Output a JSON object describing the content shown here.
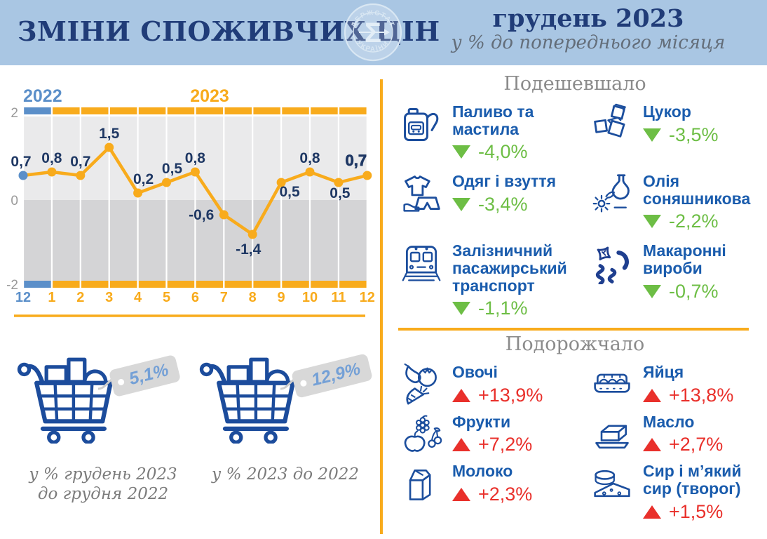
{
  "header": {
    "title": "ЗМІНИ СПОЖИВЧИХ ЦІН",
    "period": "грудень 2023",
    "subtitle": "у % до попереднього місяця",
    "logo_text_top": "ДЕРЖСТАТ",
    "logo_text_bottom": "УКРАЇНИ",
    "logo_symbol": "Σ"
  },
  "colors": {
    "header_bg": "#A9C6E3",
    "navy": "#203C78",
    "accent_orange": "#F8AB1C",
    "blue_2022": "#5B8FC9",
    "item_blue": "#1A5CAD",
    "green": "#6DBE45",
    "red": "#E9302B",
    "label_navy": "#1F3864",
    "tick_gray": "#9A9A9A"
  },
  "chart_data": {
    "type": "line",
    "title": "",
    "year_2022_label": "2022",
    "year_2023_label": "2023",
    "x_labels": [
      "12",
      "1",
      "2",
      "3",
      "4",
      "5",
      "6",
      "7",
      "8",
      "9",
      "10",
      "11",
      "12"
    ],
    "values": [
      0.7,
      0.8,
      0.7,
      1.5,
      0.2,
      0.5,
      0.8,
      -0.6,
      -1.4,
      0.5,
      0.8,
      0.5,
      0.7
    ],
    "point_labels": [
      "0,7",
      "0,8",
      "0,7",
      "1,5",
      "0,2",
      "0,5",
      "0,8",
      "-0,6",
      "-1,4",
      "0,5",
      "0,8",
      "0,5",
      "0,7"
    ],
    "y_ticks": [
      "2",
      "0",
      "-2"
    ],
    "ylim": [
      -2.4,
      2.6
    ],
    "grid": true,
    "legend_position": "top"
  },
  "summary": [
    {
      "value": "5,1%",
      "caption_line1": "у % грудень 2023",
      "caption_line2": "до грудня 2022"
    },
    {
      "value": "12,9%",
      "caption_line1": "у % 2023 до 2022",
      "caption_line2": ""
    }
  ],
  "cheaper": {
    "title": "Подешевшало",
    "items": [
      {
        "icon": "fuel-canister",
        "label": "Паливо та мастила",
        "change": "-4,0%"
      },
      {
        "icon": "sugar-cubes",
        "label": "Цукор",
        "change": "-3,5%"
      },
      {
        "icon": "clothes",
        "label": "Одяг і взуття",
        "change": "-3,4%"
      },
      {
        "icon": "sunflower-oil",
        "label": "Олія соняшникова",
        "change": "-2,2%"
      },
      {
        "icon": "train",
        "label": "Залізничний пасажирський транспорт",
        "change": "-1,1%"
      },
      {
        "icon": "pasta",
        "label": "Макаронні вироби",
        "change": "-0,7%"
      }
    ]
  },
  "pricier": {
    "title": "Подорожчало",
    "items": [
      {
        "icon": "vegetables",
        "label": "Овочі",
        "change": "+13,9%"
      },
      {
        "icon": "egg-carton",
        "label": "Яйця",
        "change": "+13,8%"
      },
      {
        "icon": "fruits",
        "label": "Фрукти",
        "change": "+7,2%"
      },
      {
        "icon": "butter",
        "label": "Масло",
        "change": "+2,7%"
      },
      {
        "icon": "milk-carton",
        "label": "Молоко",
        "change": "+2,3%"
      },
      {
        "icon": "cheese",
        "label": "Сир і м’який сир (творог)",
        "change": "+1,5%"
      }
    ]
  }
}
